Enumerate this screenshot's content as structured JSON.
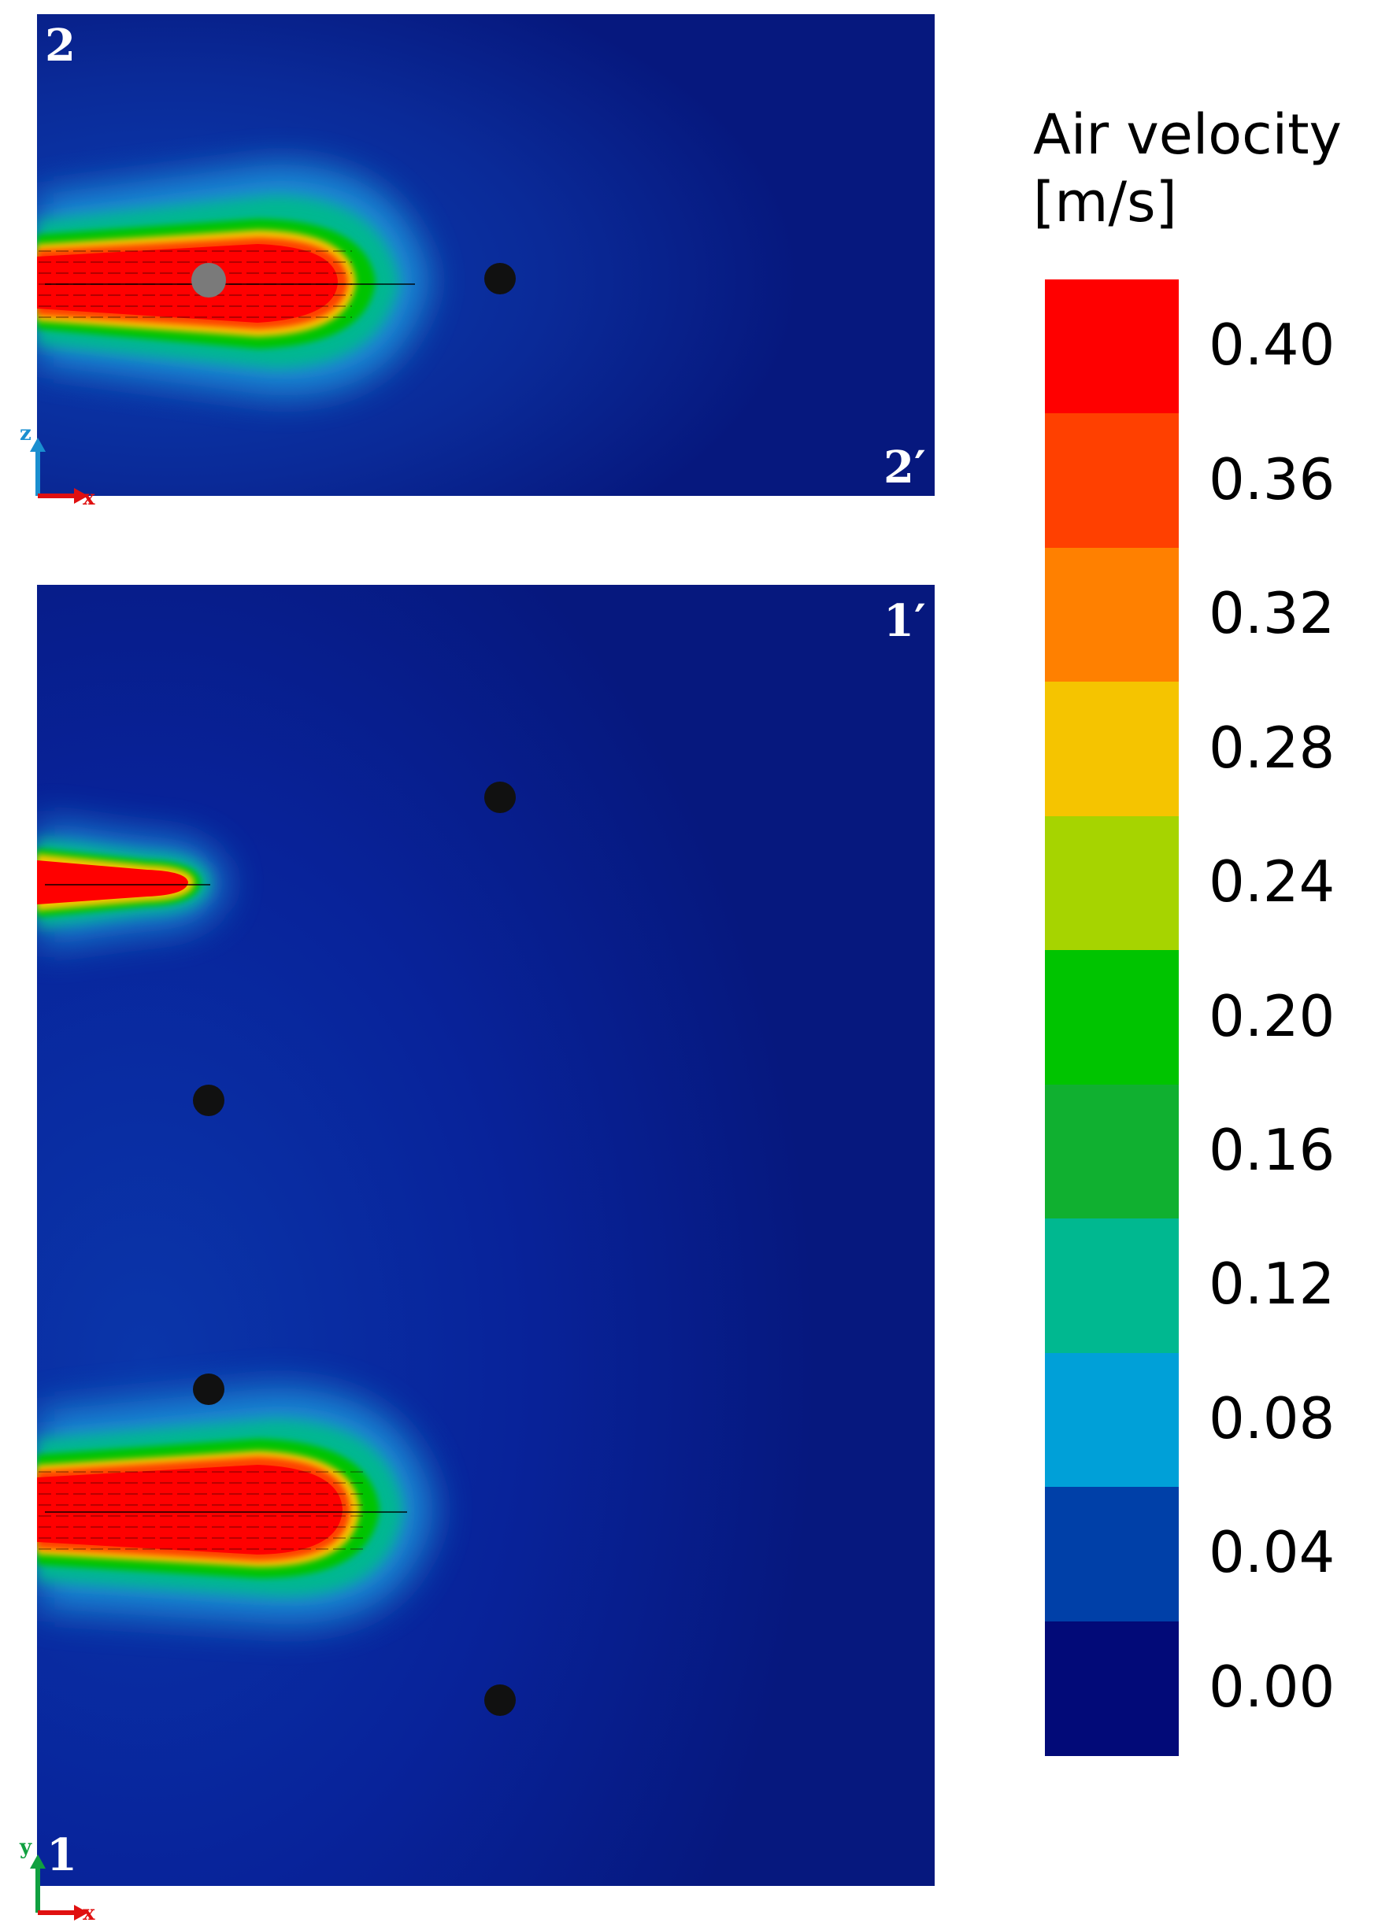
{
  "legend": {
    "title_line1": "Air velocity",
    "title_line2": "[m/s]",
    "levels": [
      {
        "label": "0.40",
        "color": "#ff0000"
      },
      {
        "label": "0.36",
        "color": "#ff4000"
      },
      {
        "label": "0.32",
        "color": "#ff8000"
      },
      {
        "label": "0.28",
        "color": "#f5c400"
      },
      {
        "label": "0.24",
        "color": "#a6d400"
      },
      {
        "label": "0.20",
        "color": "#00c400"
      },
      {
        "label": "0.16",
        "color": "#10b030"
      },
      {
        "label": "0.12",
        "color": "#00b890"
      },
      {
        "label": "0.08",
        "color": "#00a0d8"
      },
      {
        "label": "0.04",
        "color": "#0040a8"
      },
      {
        "label": "0.00",
        "color": "#020a78"
      }
    ]
  },
  "top_panel": {
    "label_left": "2",
    "label_right": "2′",
    "axis_vertical": "z",
    "axis_horizontal": "x"
  },
  "bottom_panel": {
    "label_left": "1",
    "label_right": "1′",
    "axis_vertical": "y",
    "axis_horizontal": "x"
  }
}
